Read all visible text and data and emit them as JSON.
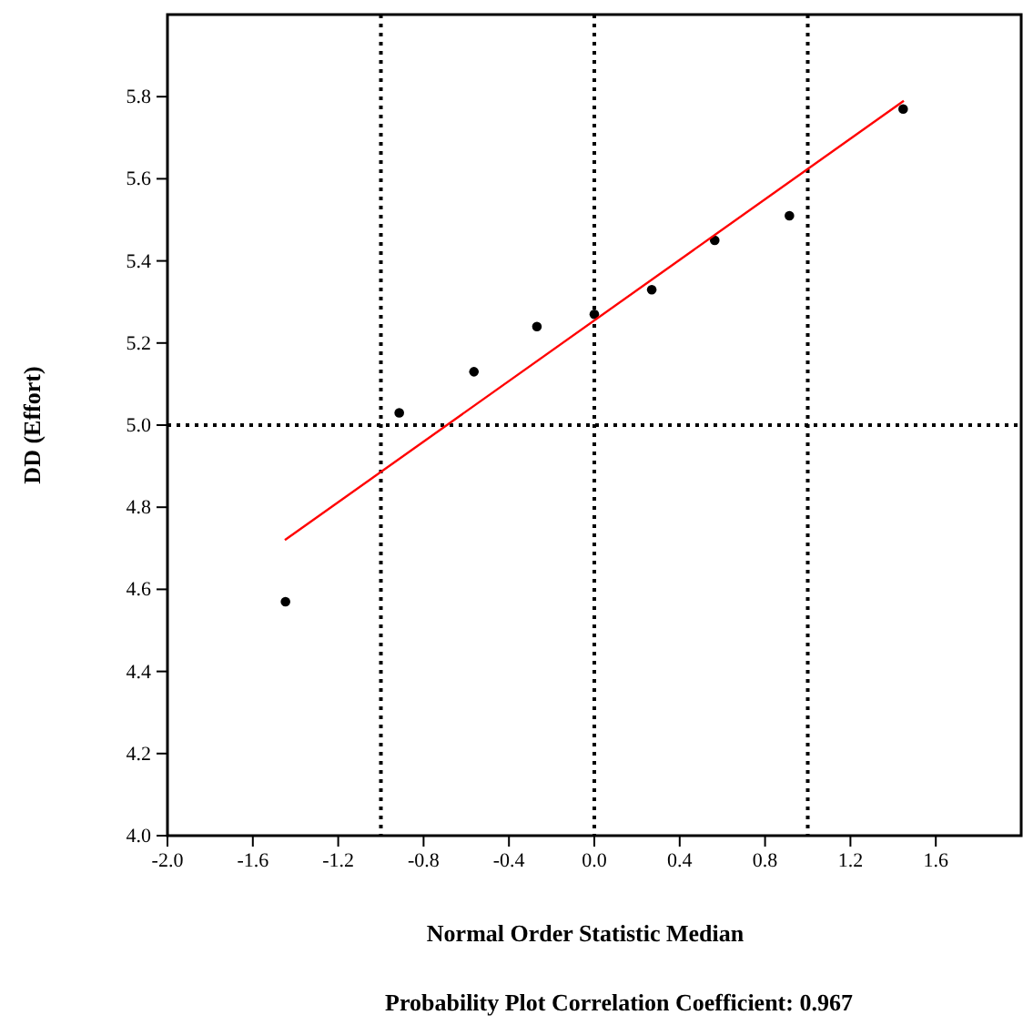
{
  "chart_data": {
    "type": "scatter",
    "xlabel": "Normal Order Statistic Median",
    "ylabel": "DD (Effort)",
    "annotations": [
      "Probability Plot Correlation Coefficient: 0.967"
    ],
    "xlim": [
      -2,
      2
    ],
    "ylim": [
      4,
      6
    ],
    "xticks": [
      {
        "value": -2,
        "label": "-2.0"
      },
      {
        "value": -1.6,
        "label": "-1.6"
      },
      {
        "value": -1.2,
        "label": "-1.2"
      },
      {
        "value": -0.8,
        "label": "-0.8"
      },
      {
        "value": -0.4,
        "label": "-0.4"
      },
      {
        "value": 0,
        "label": "0.0"
      },
      {
        "value": 0.4,
        "label": "0.4"
      },
      {
        "value": 0.8,
        "label": "0.8"
      },
      {
        "value": 1.2,
        "label": "1.2"
      },
      {
        "value": 1.6,
        "label": "1.6"
      }
    ],
    "yticks": [
      {
        "value": 4,
        "label": "4.0"
      },
      {
        "value": 4.2,
        "label": "4.2"
      },
      {
        "value": 4.4,
        "label": "4.4"
      },
      {
        "value": 4.6,
        "label": "4.6"
      },
      {
        "value": 4.8,
        "label": "4.8"
      },
      {
        "value": 5,
        "label": "5.0"
      },
      {
        "value": 5.2,
        "label": "5.2"
      },
      {
        "value": 5.4,
        "label": "5.4"
      },
      {
        "value": 5.6,
        "label": "5.6"
      },
      {
        "value": 5.8,
        "label": "5.8"
      }
    ],
    "grid": false,
    "series": [
      {
        "color": "#000000",
        "marker": "circle",
        "x": [
          -1.447,
          -0.914,
          -0.564,
          -0.269,
          0,
          0.269,
          0.564,
          0.914,
          1.447
        ],
        "values": [
          4.57,
          5.03,
          5.13,
          5.24,
          5.27,
          5.33,
          5.45,
          5.51,
          5.77
        ]
      },
      {
        "type": "line",
        "color": "#ff0000",
        "marker": "none",
        "line_style": "solid",
        "x": [
          -1.45,
          1.45
        ],
        "values": [
          4.72,
          5.79
        ]
      }
    ],
    "ref_lines": [
      {
        "axis": "x",
        "value": -1,
        "color": "#000000",
        "line_style": "dotted"
      },
      {
        "axis": "x",
        "value": 0,
        "color": "#000000",
        "line_style": "dotted"
      },
      {
        "axis": "x",
        "value": 1,
        "color": "#000000",
        "line_style": "dotted"
      },
      {
        "axis": "y",
        "value": 5,
        "color": "#000000",
        "line_style": "dotted"
      }
    ]
  }
}
